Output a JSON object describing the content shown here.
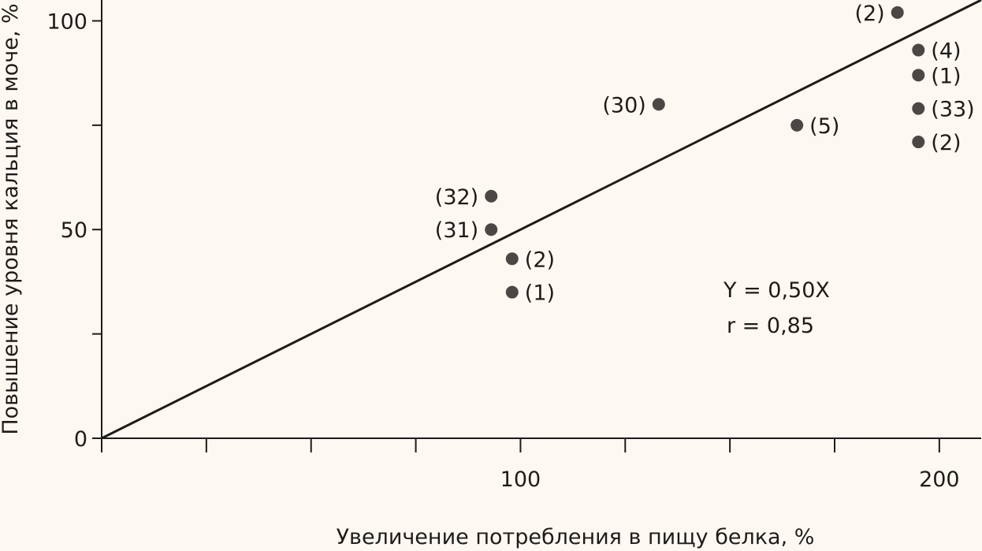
{
  "chart_data": {
    "type": "scatter",
    "title": "",
    "xlabel": "Увеличение потребления в пищу белка, %",
    "ylabel": "Повышение уровня кальция в моче, %",
    "xlim": [
      0,
      210
    ],
    "ylim": [
      0,
      105
    ],
    "x_ticks": [
      0,
      25,
      50,
      75,
      100,
      125,
      150,
      175,
      200
    ],
    "x_tick_labels": [
      {
        "value": 100,
        "label": "100"
      },
      {
        "value": 200,
        "label": "200"
      }
    ],
    "y_ticks": [
      0,
      25,
      50,
      75,
      100
    ],
    "y_tick_labels": [
      {
        "value": 0,
        "label": "0"
      },
      {
        "value": 50,
        "label": "50"
      },
      {
        "value": 100,
        "label": "100"
      }
    ],
    "grid": false,
    "points": [
      {
        "x": 93,
        "y": 58,
        "label": "(32)",
        "label_side": "left"
      },
      {
        "x": 93,
        "y": 50,
        "label": "(31)",
        "label_side": "left"
      },
      {
        "x": 98,
        "y": 43,
        "label": "(2)",
        "label_side": "right"
      },
      {
        "x": 98,
        "y": 35,
        "label": "(1)",
        "label_side": "right"
      },
      {
        "x": 133,
        "y": 80,
        "label": "(30)",
        "label_side": "left"
      },
      {
        "x": 166,
        "y": 75,
        "label": "(5)",
        "label_side": "right"
      },
      {
        "x": 190,
        "y": 102,
        "label": "(2)",
        "label_side": "left"
      },
      {
        "x": 195,
        "y": 93,
        "label": "(4)",
        "label_side": "right"
      },
      {
        "x": 195,
        "y": 87,
        "label": "(1)",
        "label_side": "right"
      },
      {
        "x": 195,
        "y": 79,
        "label": "(33)",
        "label_side": "right"
      },
      {
        "x": 195,
        "y": 71,
        "label": "(2)",
        "label_side": "right"
      }
    ],
    "regression_line": {
      "x": [
        0,
        210
      ],
      "y": [
        0,
        105
      ]
    },
    "annotations": [
      "Y = 0,50X",
      "r = 0,85"
    ],
    "colors": {
      "points": "#4a4745",
      "line": "#1e1c1a",
      "axes": "#1e1c1a",
      "background": "#fdf9f2"
    }
  }
}
